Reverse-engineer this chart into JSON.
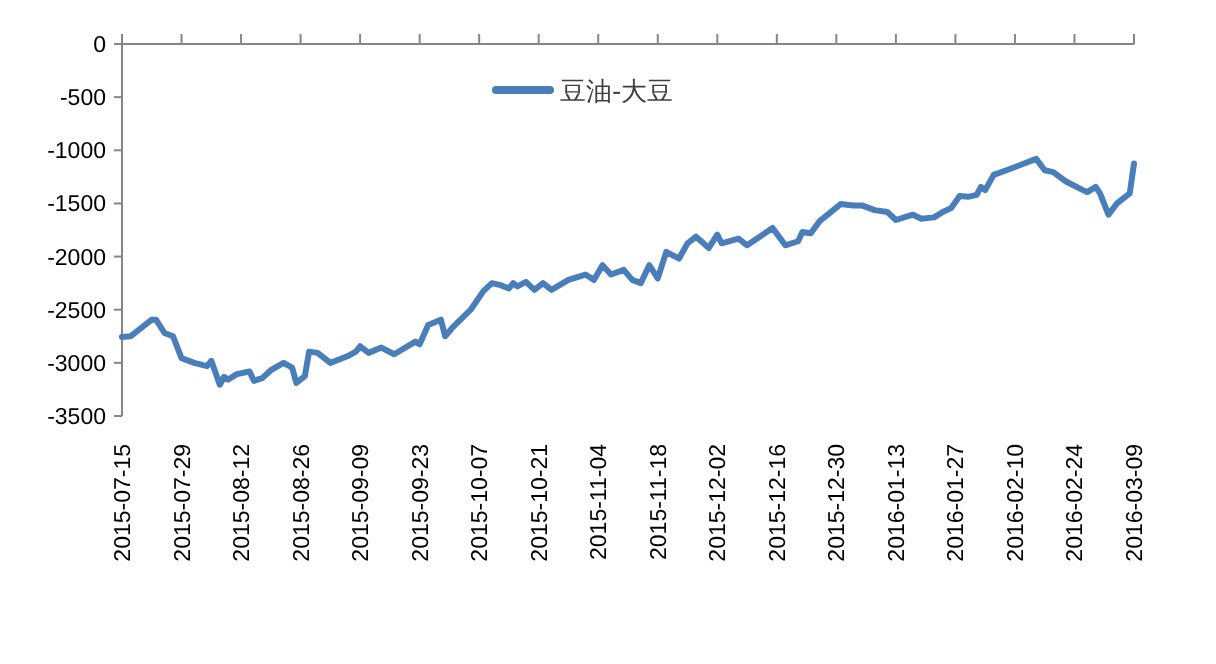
{
  "chart_data": {
    "type": "line",
    "legend": "top",
    "grid": false,
    "marker": "none",
    "line_style": "solid",
    "xlim": [
      "2015-07-15",
      "2016-03-09"
    ],
    "xticks": [
      "2015-07-15",
      "2015-07-29",
      "2015-08-12",
      "2015-08-26",
      "2015-09-09",
      "2015-09-23",
      "2015-10-07",
      "2015-10-21",
      "2015-11-04",
      "2015-11-18",
      "2015-12-02",
      "2015-12-16",
      "2015-12-30",
      "2016-01-13",
      "2016-01-27",
      "2016-02-10",
      "2016-02-24",
      "2016-03-09"
    ],
    "ylim": [
      -3500,
      0
    ],
    "yticks": [
      -3500,
      -3000,
      -2500,
      -2000,
      -1500,
      -1000,
      -500,
      0
    ],
    "x": [
      "2015-07-15",
      "2015-07-17",
      "2015-07-22",
      "2015-07-23",
      "2015-07-25",
      "2015-07-27",
      "2015-07-29",
      "2015-08-01",
      "2015-08-04",
      "2015-08-05",
      "2015-08-07",
      "2015-08-08",
      "2015-08-09",
      "2015-08-11",
      "2015-08-14",
      "2015-08-15",
      "2015-08-17",
      "2015-08-19",
      "2015-08-22",
      "2015-08-24",
      "2015-08-25",
      "2015-08-27",
      "2015-08-28",
      "2015-08-30",
      "2015-09-02",
      "2015-09-06",
      "2015-09-08",
      "2015-09-09",
      "2015-09-11",
      "2015-09-14",
      "2015-09-17",
      "2015-09-22",
      "2015-09-23",
      "2015-09-25",
      "2015-09-28",
      "2015-09-29",
      "2015-10-01",
      "2015-10-05",
      "2015-10-08",
      "2015-10-10",
      "2015-10-12",
      "2015-10-14",
      "2015-10-15",
      "2015-10-16",
      "2015-10-18",
      "2015-10-20",
      "2015-10-22",
      "2015-10-24",
      "2015-10-28",
      "2015-11-01",
      "2015-11-03",
      "2015-11-05",
      "2015-11-07",
      "2015-11-10",
      "2015-11-12",
      "2015-11-14",
      "2015-11-16",
      "2015-11-18",
      "2015-11-20",
      "2015-11-23",
      "2015-11-25",
      "2015-11-27",
      "2015-11-30",
      "2015-12-02",
      "2015-12-03",
      "2015-12-07",
      "2015-12-09",
      "2015-12-15",
      "2015-12-18",
      "2015-12-21",
      "2015-12-22",
      "2015-12-24",
      "2015-12-26",
      "2015-12-31",
      "2016-01-03",
      "2016-01-05",
      "2016-01-08",
      "2016-01-11",
      "2016-01-13",
      "2016-01-17",
      "2016-01-19",
      "2016-01-22",
      "2016-01-24",
      "2016-01-26",
      "2016-01-28",
      "2016-01-30",
      "2016-02-01",
      "2016-02-02",
      "2016-02-03",
      "2016-02-05",
      "2016-02-08",
      "2016-02-15",
      "2016-02-17",
      "2016-02-19",
      "2016-02-22",
      "2016-02-26",
      "2016-02-27",
      "2016-02-29",
      "2016-03-01",
      "2016-03-03",
      "2016-03-05",
      "2016-03-08",
      "2016-03-09"
    ],
    "series": [
      {
        "name": "豆油-大豆",
        "color": "#4a7ebb",
        "values": [
          -2756,
          -2750,
          -2594,
          -2594,
          -2719,
          -2750,
          -2956,
          -3000,
          -3031,
          -2981,
          -3206,
          -3131,
          -3156,
          -3106,
          -3081,
          -3169,
          -3144,
          -3069,
          -3000,
          -3044,
          -3188,
          -3125,
          -2894,
          -2906,
          -3000,
          -2938,
          -2894,
          -2844,
          -2906,
          -2856,
          -2919,
          -2800,
          -2825,
          -2644,
          -2594,
          -2750,
          -2656,
          -2500,
          -2325,
          -2250,
          -2269,
          -2300,
          -2250,
          -2281,
          -2238,
          -2313,
          -2250,
          -2313,
          -2219,
          -2169,
          -2219,
          -2081,
          -2169,
          -2125,
          -2219,
          -2250,
          -2081,
          -2206,
          -1956,
          -2019,
          -1875,
          -1813,
          -1919,
          -1794,
          -1875,
          -1831,
          -1894,
          -1731,
          -1894,
          -1856,
          -1769,
          -1781,
          -1669,
          -1506,
          -1519,
          -1519,
          -1563,
          -1581,
          -1656,
          -1606,
          -1644,
          -1631,
          -1581,
          -1544,
          -1431,
          -1438,
          -1419,
          -1344,
          -1375,
          -1231,
          -1188,
          -1081,
          -1188,
          -1206,
          -1294,
          -1375,
          -1394,
          -1344,
          -1406,
          -1606,
          -1500,
          -1406,
          -1125
        ]
      }
    ]
  }
}
